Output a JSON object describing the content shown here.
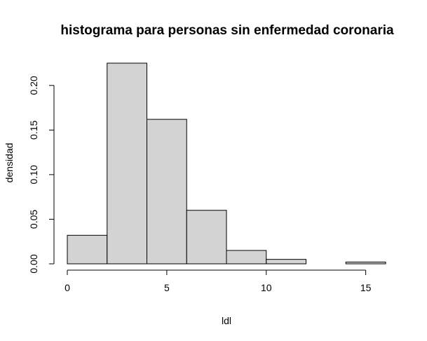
{
  "chart_data": {
    "type": "bar",
    "title": "histograma para personas sin enfermedad coronaria",
    "xlabel": "ldl",
    "ylabel": "densidad",
    "bins": [
      {
        "from": 0,
        "to": 2,
        "value": 0.032
      },
      {
        "from": 2,
        "to": 4,
        "value": 0.225
      },
      {
        "from": 4,
        "to": 6,
        "value": 0.162
      },
      {
        "from": 6,
        "to": 8,
        "value": 0.06
      },
      {
        "from": 8,
        "to": 10,
        "value": 0.015
      },
      {
        "from": 10,
        "to": 12,
        "value": 0.005
      },
      {
        "from": 12,
        "to": 14,
        "value": 0.0
      },
      {
        "from": 14,
        "to": 16,
        "value": 0.002
      }
    ],
    "xlim": [
      0,
      16
    ],
    "ylim": [
      0,
      0.225
    ],
    "xticks": [
      {
        "value": 0,
        "label": "0"
      },
      {
        "value": 5,
        "label": "5"
      },
      {
        "value": 10,
        "label": "10"
      },
      {
        "value": 15,
        "label": "15"
      }
    ],
    "yticks": [
      {
        "value": 0.0,
        "label": "0.00"
      },
      {
        "value": 0.05,
        "label": "0.05"
      },
      {
        "value": 0.1,
        "label": "0.10"
      },
      {
        "value": 0.15,
        "label": "0.15"
      },
      {
        "value": 0.2,
        "label": "0.20"
      }
    ],
    "colors": {
      "bar_fill": "#d3d3d3",
      "bar_stroke": "#000000"
    },
    "grid": false,
    "legend": "none"
  }
}
